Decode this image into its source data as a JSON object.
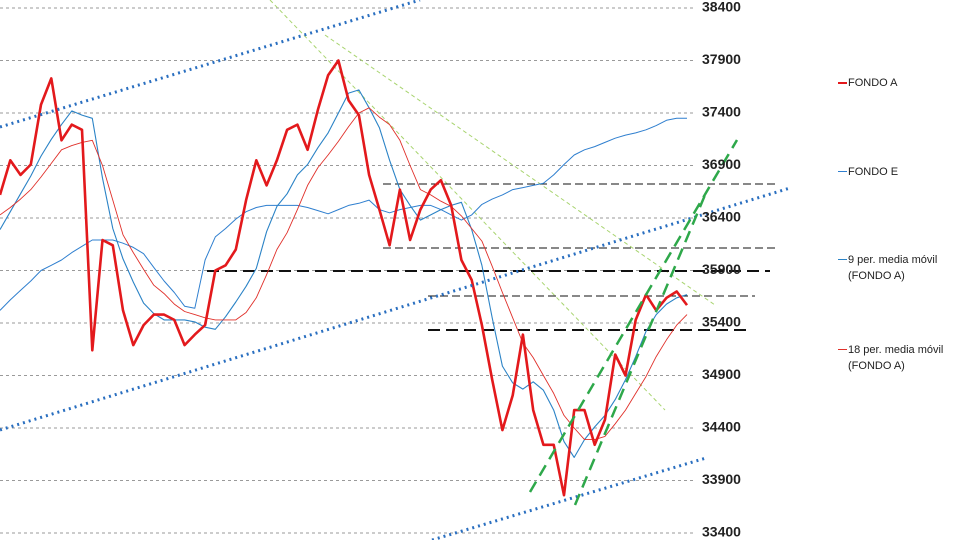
{
  "chart_data": {
    "type": "line",
    "ylim": [
      33400,
      38400
    ],
    "yticks": [
      33400,
      33900,
      34400,
      34900,
      35400,
      35900,
      36400,
      36900,
      37400,
      37900,
      38400
    ],
    "grid": true,
    "legend": "right",
    "series": [
      {
        "name": "FONDO A",
        "color": "#e3191c",
        "values": [
          36620,
          36950,
          36810,
          36910,
          37480,
          37730,
          37140,
          37290,
          37240,
          35140,
          36190,
          36140,
          35520,
          35190,
          35380,
          35480,
          35480,
          35430,
          35190,
          35290,
          35380,
          35900,
          35950,
          36100,
          36570,
          36950,
          36710,
          36950,
          37240,
          37290,
          37050,
          37430,
          37760,
          37900,
          37520,
          37380,
          36810,
          36480,
          36140,
          36670,
          36190,
          36480,
          36670,
          36760,
          36520,
          36000,
          35810,
          35380,
          34860,
          34380,
          34710,
          35290,
          34570,
          34240,
          34240,
          33760,
          34570,
          34570,
          34240,
          34480,
          35100,
          34900,
          35430,
          35670,
          35520,
          35640,
          35700,
          35570
        ]
      },
      {
        "name": "FONDO E",
        "color": "#2f7fcf",
        "values": [
          35520,
          35620,
          35710,
          35800,
          35900,
          35950,
          36000,
          36070,
          36130,
          36190,
          36190,
          36190,
          36160,
          36120,
          36060,
          35930,
          35800,
          35690,
          35560,
          35540,
          36000,
          36220,
          36300,
          36390,
          36460,
          36500,
          36520,
          36520,
          36520,
          36520,
          36500,
          36470,
          36440,
          36480,
          36520,
          36540,
          36570,
          36480,
          36450,
          36480,
          36500,
          36520,
          36520,
          36480,
          36430,
          36380,
          36430,
          36530,
          36580,
          36620,
          36670,
          36690,
          36710,
          36730,
          36810,
          36910,
          37000,
          37050,
          37080,
          37120,
          37160,
          37190,
          37210,
          37240,
          37280,
          37330,
          37350,
          37350
        ]
      },
      {
        "name": "9 per. media móvil (FONDO A)",
        "color": "#2b83c6",
        "values": [
          36290,
          36460,
          36630,
          36800,
          36990,
          37150,
          37290,
          37420,
          37380,
          37350,
          36780,
          36300,
          36010,
          35790,
          35590,
          35490,
          35430,
          35430,
          35430,
          35410,
          35360,
          35340,
          35460,
          35600,
          35750,
          35920,
          36270,
          36510,
          36630,
          36810,
          36910,
          37070,
          37210,
          37400,
          37590,
          37620,
          37450,
          37260,
          36950,
          36670,
          36520,
          36380,
          36430,
          36480,
          36520,
          36550,
          36290,
          35950,
          35450,
          34990,
          34830,
          34770,
          34840,
          34760,
          34570,
          34270,
          34120,
          34290,
          34410,
          34520,
          34670,
          34860,
          35080,
          35320,
          35480,
          35580,
          35640,
          35670
        ]
      },
      {
        "name": "18 per. media móvil (FONDO A)",
        "color": "#e0302a",
        "values": [
          36430,
          36500,
          36580,
          36670,
          36790,
          36920,
          37050,
          37090,
          37120,
          37140,
          36900,
          36570,
          36240,
          36070,
          35910,
          35760,
          35680,
          35580,
          35510,
          35480,
          35450,
          35430,
          35430,
          35430,
          35500,
          35640,
          35860,
          36100,
          36260,
          36480,
          36710,
          36880,
          37000,
          37130,
          37270,
          37400,
          37450,
          37360,
          37290,
          37140,
          36900,
          36670,
          36620,
          36560,
          36510,
          36420,
          36300,
          36180,
          35940,
          35690,
          35450,
          35210,
          35070,
          34900,
          34730,
          34520,
          34400,
          34290,
          34290,
          34320,
          34440,
          34570,
          34730,
          34890,
          35080,
          35240,
          35380,
          35480
        ]
      }
    ]
  }
}
